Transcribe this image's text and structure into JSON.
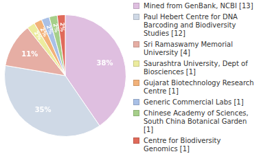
{
  "chart_data": {
    "type": "pie",
    "categories": [
      "Mined from GenBank, NCBI [13]",
      "Paul Hebert Centre for DNA Barcoding and Biodiversity Studies [12]",
      "Sri Ramaswamy Memorial University [4]",
      "Saurashtra University, Dept of Biosciences [1]",
      "Gujarat Biotechnology Research Centre [1]",
      "Generic Commercial Labs [1]",
      "Chinese Academy of Sciences, South China Botanical Garden [1]",
      "Centre for Biodiversity Genomics [1]"
    ],
    "values": [
      38,
      35,
      11,
      2,
      2,
      2,
      2,
      2
    ],
    "value_labels": [
      "38%",
      "35%",
      "11%",
      "2%",
      "2%",
      "2%",
      "2%",
      "2%"
    ],
    "colors": [
      "#dfbfe0",
      "#cfd9e6",
      "#e6aea4",
      "#ecec9e",
      "#f2b27a",
      "#a9c0e6",
      "#a6cf8a",
      "#e06a5a"
    ],
    "data_labels": true,
    "legend": "right"
  }
}
